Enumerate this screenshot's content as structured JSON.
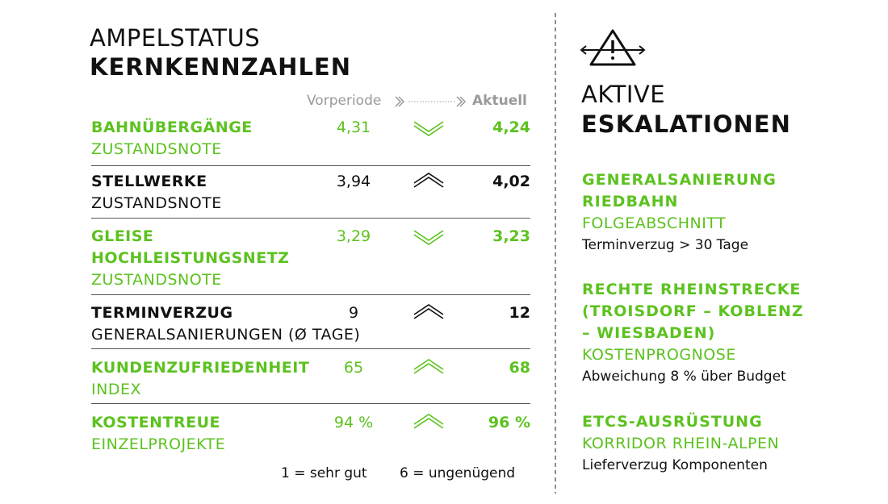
{
  "left": {
    "title_light": "AMPELSTATUS",
    "title_bold": "KERNKENNZAHLEN",
    "header": {
      "previous": "Vorperiode",
      "current": "Aktuell"
    },
    "rows": [
      {
        "name": "BAHNÜBERGÄNGE",
        "sub": "ZUSTANDSNOTE",
        "previous": "4,31",
        "current": "4,24",
        "trend": "down",
        "color": "#5cc21f"
      },
      {
        "name": "STELLWERKE",
        "sub": "ZUSTANDSNOTE",
        "previous": "3,94",
        "current": "4,02",
        "trend": "up",
        "color": "#111111"
      },
      {
        "name": "GLEISE HOCHLEISTUNGSNETZ",
        "sub": "ZUSTANDSNOTE",
        "previous": "3,29",
        "current": "3,23",
        "trend": "down",
        "color": "#5cc21f"
      },
      {
        "name": "TERMINVERZUG",
        "sub": "GENERALSANIERUNGEN (Ø TAGE)",
        "previous": "9",
        "current": "12",
        "trend": "up",
        "color": "#111111"
      },
      {
        "name": "KUNDENZUFRIEDENHEIT",
        "sub": "INDEX",
        "previous": "65",
        "current": "68",
        "trend": "up",
        "color": "#5cc21f"
      },
      {
        "name": "KOSTENTREUE",
        "sub": "EINZELPROJEKTE",
        "previous": "94 %",
        "current": "96 %",
        "trend": "up",
        "color": "#5cc21f"
      }
    ],
    "footnote": [
      "1 = sehr gut",
      "6 = ungenügend"
    ]
  },
  "right": {
    "title_light": "AKTIVE",
    "title_bold": "ESKALATIONEN",
    "items": [
      {
        "title": "GENERALSANIERUNG RIEDBAHN",
        "subtitle": "FOLGEABSCHNITT",
        "detail": "Terminverzug > 30 Tage"
      },
      {
        "title": "RECHTE RHEINSTRECKE (TROISDORF – KOBLENZ – WIESBADEN)",
        "subtitle": "KOSTENPROGNOSE",
        "detail": "Abweichung 8 % über Budget"
      },
      {
        "title": "ETCS-AUSRÜSTUNG",
        "subtitle": "KORRIDOR RHEIN-ALPEN",
        "detail": "Lieferverzug Komponenten"
      }
    ]
  }
}
